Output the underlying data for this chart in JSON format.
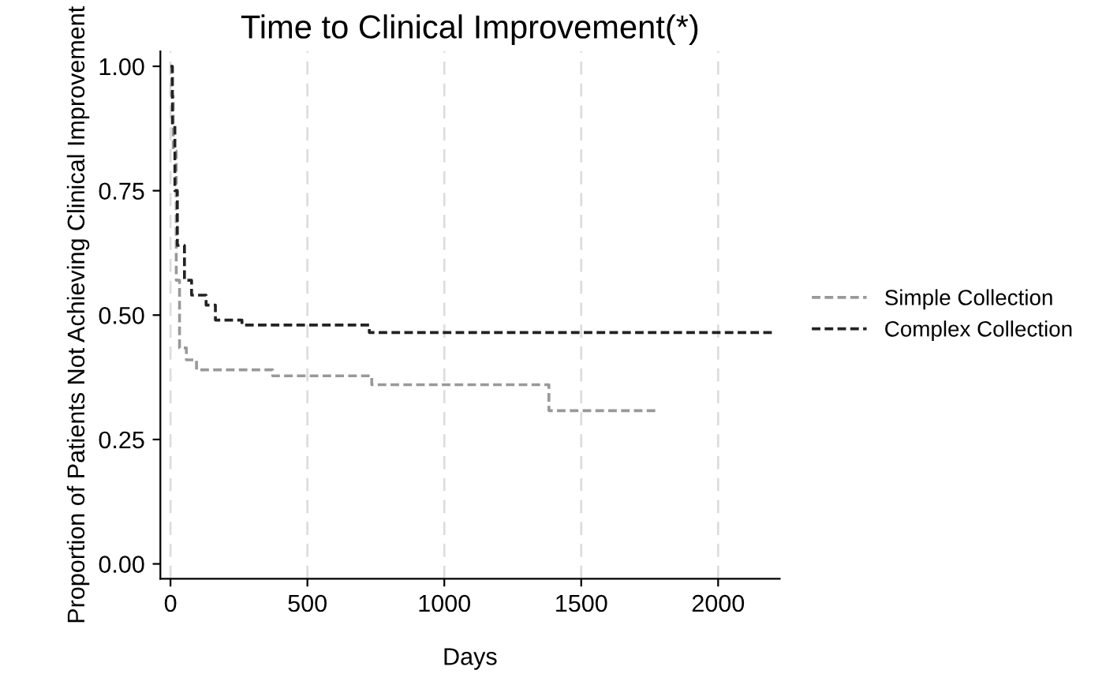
{
  "chart_data": {
    "type": "step",
    "title": "Time to Clinical Improvement(*)",
    "xlabel": "Days",
    "ylabel": "Proportion of Patients Not Achieving Clinical Improvement",
    "xlim": [
      -37,
      2225
    ],
    "xticks": [
      0,
      500,
      1000,
      1500,
      2000
    ],
    "ylim": [
      -0.03,
      1.03
    ],
    "yticks": [
      {
        "value": 0,
        "label": "0.00"
      },
      {
        "value": 0.25,
        "label": "0.25"
      },
      {
        "value": 0.5,
        "label": "0.50"
      },
      {
        "value": 0.75,
        "label": "0.75"
      },
      {
        "value": 1,
        "label": "1.00"
      }
    ],
    "grid": "x",
    "legend": "right",
    "line_style": "dashed",
    "marker": "none",
    "series": [
      {
        "name": "Simple Collection",
        "color": "#999999",
        "x": [
          0,
          4,
          10,
          21,
          33,
          58,
          95,
          373,
          735,
          1382,
          1773
        ],
        "values": [
          1.0,
          0.94,
          0.83,
          0.57,
          0.434,
          0.41,
          0.39,
          0.378,
          0.36,
          0.308,
          0.308
        ]
      },
      {
        "name": "Complex Collection",
        "color": "#222222",
        "x": [
          0,
          7,
          16,
          25,
          51,
          77,
          130,
          164,
          261,
          726,
          2200
        ],
        "values": [
          1.0,
          0.88,
          0.75,
          0.64,
          0.57,
          0.54,
          0.52,
          0.49,
          0.48,
          0.465,
          0.465
        ]
      }
    ]
  }
}
